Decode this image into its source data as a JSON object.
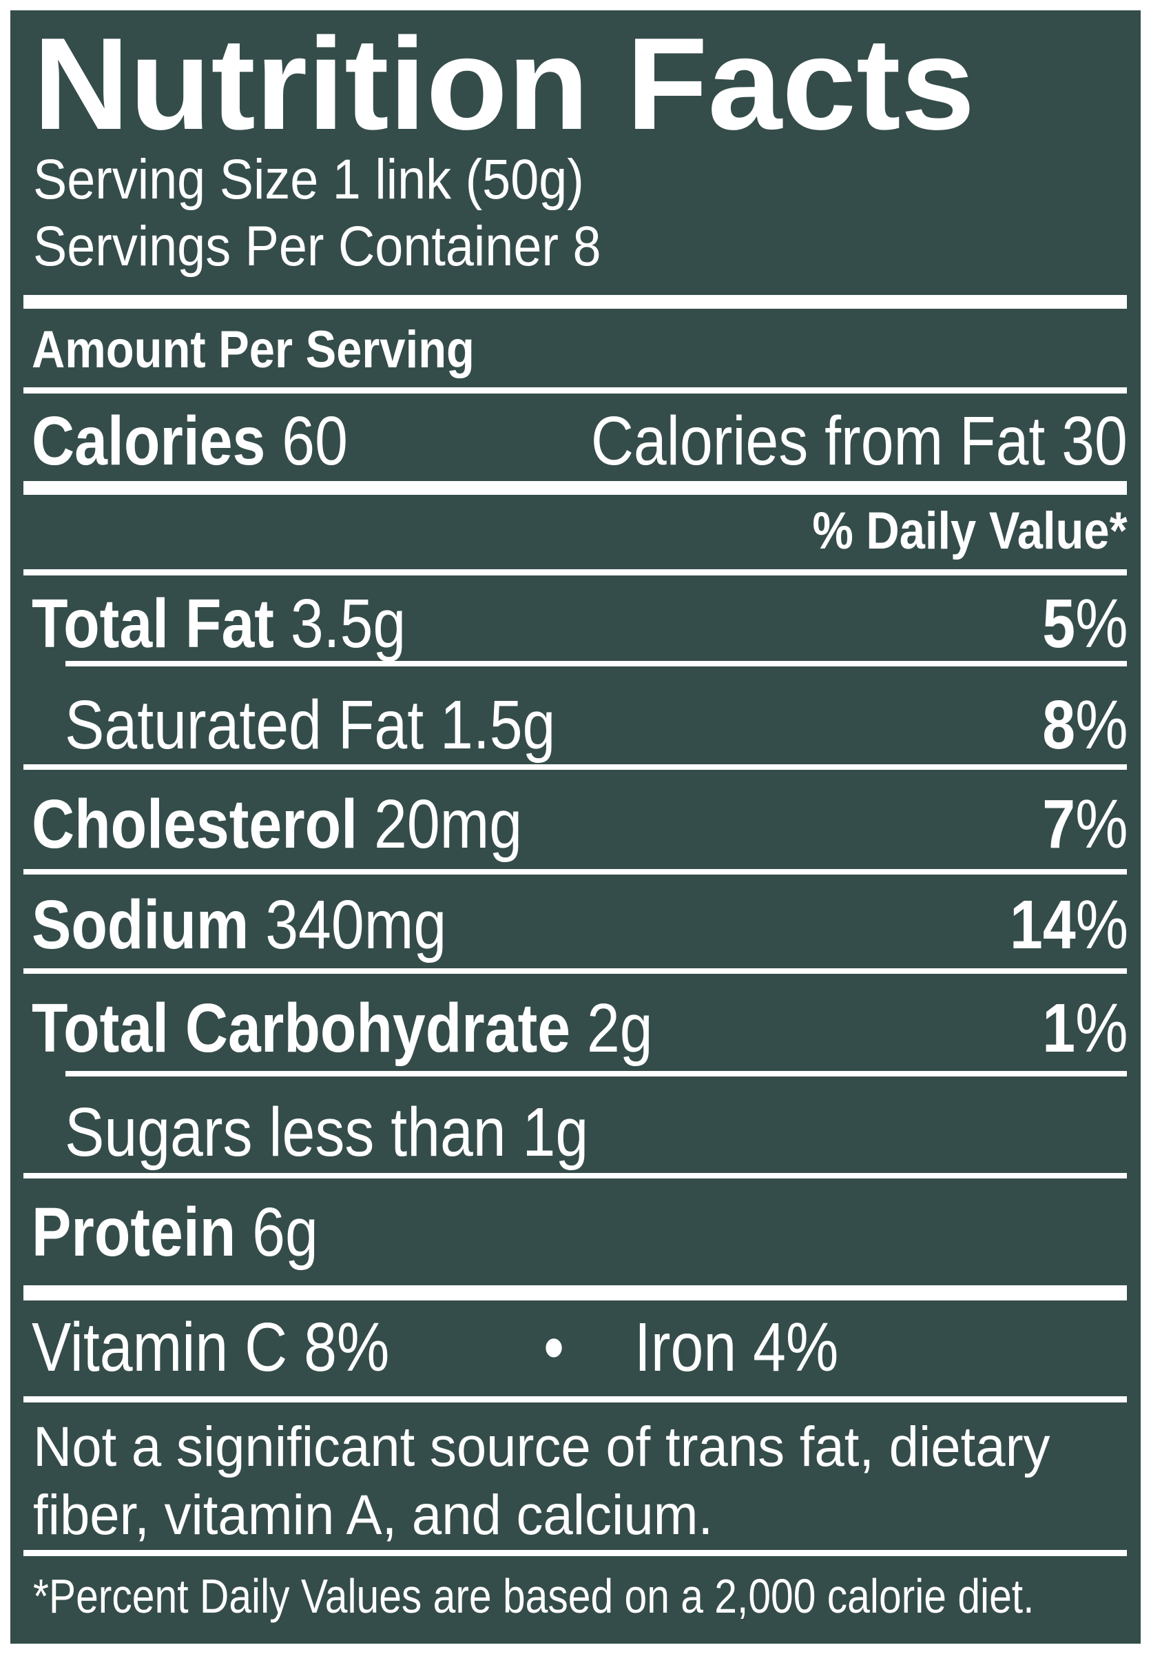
{
  "label": {
    "title": "Nutrition Facts",
    "serving_size": "Serving Size 1 link (50g)",
    "servings_per_container": "Servings Per Container 8",
    "amount_per_serving": "Amount Per Serving",
    "calories": {
      "label": "Calories",
      "value": "60"
    },
    "calories_from_fat": "Calories from Fat 30",
    "daily_value_header": "% Daily Value*",
    "nutrients": [
      {
        "name": "Total Fat",
        "amount": "3.5g",
        "pct_num": "5",
        "pct_sign": "%"
      },
      {
        "name": "Saturated Fat",
        "amount": "1.5g",
        "pct_num": "8",
        "pct_sign": "%"
      },
      {
        "name": "Cholesterol",
        "amount": "20mg",
        "pct_num": "7",
        "pct_sign": "%"
      },
      {
        "name": "Sodium",
        "amount": "340mg",
        "pct_num": "14",
        "pct_sign": "%"
      },
      {
        "name": "Total Carbohydrate",
        "amount": "2g",
        "pct_num": "1",
        "pct_sign": "%"
      },
      {
        "name": "Sugars",
        "amount": "less than 1g"
      },
      {
        "name": "Protein",
        "amount": "6g"
      }
    ],
    "vitamins": {
      "vitamin_c": "Vitamin C 8%",
      "separator": "•",
      "iron": "Iron 4%"
    },
    "not_significant_line1": "Not a significant source of trans fat, dietary",
    "not_significant_line2": "fiber, vitamin A, and calcium.",
    "footnote": "*Percent Daily Values are based on a 2,000 calorie diet."
  },
  "colors": {
    "background": "#354d4a",
    "text": "#ffffff"
  }
}
